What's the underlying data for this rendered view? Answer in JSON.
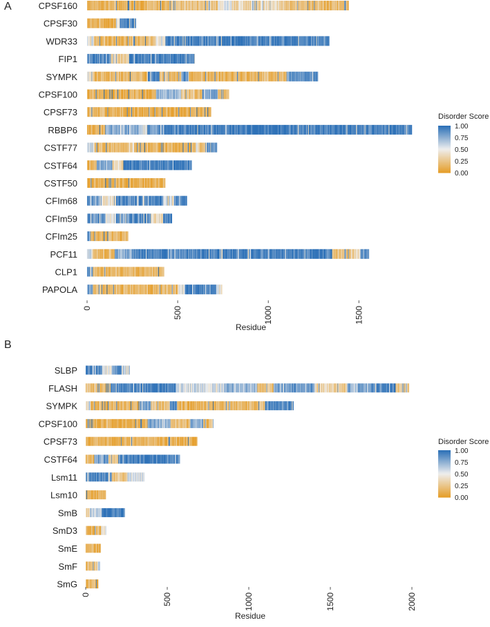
{
  "colors": {
    "low": "#e6a02e",
    "mid": "#eeeeee",
    "high": "#2f72b8",
    "axis": "#cfcfcf",
    "text": "#222222"
  },
  "chart_data": [
    {
      "type": "heatmap",
      "panel_label": "A",
      "xlabel": "Residue",
      "xlim": [
        0,
        1800
      ],
      "x_ticks": [
        0,
        500,
        1000,
        1500
      ],
      "legend": {
        "title": "Disorder Score",
        "ticks": [
          "1.00",
          "0.75",
          "0.50",
          "0.25",
          "0.00"
        ],
        "position": "right"
      },
      "proteins": [
        {
          "name": "CPSF160",
          "length": 1443,
          "segments": [
            [
              0,
              0.15
            ],
            [
              450,
              0.25
            ],
            [
              720,
              0.55
            ],
            [
              800,
              0.35
            ],
            [
              1100,
              0.2
            ],
            [
              1300,
              0.15
            ]
          ]
        },
        {
          "name": "CPSF30",
          "length": 269,
          "segments": [
            [
              0,
              0.1
            ],
            [
              160,
              0.5
            ],
            [
              180,
              0.95
            ]
          ]
        },
        {
          "name": "WDR33",
          "length": 1336,
          "segments": [
            [
              0,
              0.45
            ],
            [
              40,
              0.15
            ],
            [
              380,
              0.5
            ],
            [
              430,
              0.95
            ]
          ]
        },
        {
          "name": "FIP1",
          "length": 594,
          "segments": [
            [
              0,
              0.9
            ],
            [
              130,
              0.3
            ],
            [
              230,
              0.95
            ]
          ]
        },
        {
          "name": "SYMPK",
          "length": 1274,
          "segments": [
            [
              0,
              0.45
            ],
            [
              30,
              0.15
            ],
            [
              330,
              0.9
            ],
            [
              400,
              0.2
            ],
            [
              520,
              0.85
            ],
            [
              560,
              0.15
            ],
            [
              1100,
              0.9
            ]
          ]
        },
        {
          "name": "CPSF100",
          "length": 782,
          "segments": [
            [
              0,
              0.1
            ],
            [
              380,
              0.75
            ],
            [
              520,
              0.2
            ],
            [
              640,
              0.8
            ],
            [
              720,
              0.2
            ]
          ]
        },
        {
          "name": "CPSF73",
          "length": 684,
          "segments": [
            [
              0,
              0.1
            ]
          ]
        },
        {
          "name": "RBBP6",
          "length": 1792,
          "segments": [
            [
              0,
              0.15
            ],
            [
              100,
              0.75
            ],
            [
              300,
              0.5
            ],
            [
              330,
              0.9
            ],
            [
              500,
              0.97
            ]
          ]
        },
        {
          "name": "CSTF77",
          "length": 717,
          "segments": [
            [
              0,
              0.6
            ],
            [
              40,
              0.15
            ],
            [
              230,
              0.35
            ],
            [
              260,
              0.15
            ],
            [
              600,
              0.45
            ],
            [
              620,
              0.2
            ],
            [
              660,
              0.9
            ]
          ]
        },
        {
          "name": "CSTF64",
          "length": 577,
          "segments": [
            [
              0,
              0.15
            ],
            [
              50,
              0.8
            ],
            [
              140,
              0.3
            ],
            [
              200,
              0.95
            ]
          ]
        },
        {
          "name": "CSTF50",
          "length": 431,
          "segments": [
            [
              0,
              0.1
            ]
          ]
        },
        {
          "name": "CFIm68",
          "length": 551,
          "segments": [
            [
              0,
              0.85
            ],
            [
              80,
              0.4
            ],
            [
              160,
              0.9
            ],
            [
              420,
              0.4
            ],
            [
              480,
              0.95
            ]
          ]
        },
        {
          "name": "CFIm59",
          "length": 468,
          "segments": [
            [
              0,
              0.85
            ],
            [
              100,
              0.5
            ],
            [
              160,
              0.9
            ],
            [
              350,
              0.4
            ],
            [
              420,
              0.95
            ]
          ]
        },
        {
          "name": "CFIm25",
          "length": 227,
          "segments": [
            [
              0,
              0.8
            ],
            [
              20,
              0.15
            ]
          ]
        },
        {
          "name": "PCF11",
          "length": 1555,
          "segments": [
            [
              0,
              0.6
            ],
            [
              30,
              0.15
            ],
            [
              150,
              0.75
            ],
            [
              260,
              0.95
            ],
            [
              1350,
              0.2
            ],
            [
              1450,
              0.35
            ],
            [
              1500,
              0.85
            ]
          ]
        },
        {
          "name": "CLP1",
          "length": 425,
          "segments": [
            [
              0,
              0.85
            ],
            [
              30,
              0.15
            ]
          ]
        },
        {
          "name": "PAPOLA",
          "length": 745,
          "segments": [
            [
              0,
              0.85
            ],
            [
              30,
              0.15
            ],
            [
              500,
              0.5
            ],
            [
              540,
              0.95
            ],
            [
              710,
              0.45
            ]
          ]
        }
      ]
    },
    {
      "type": "heatmap",
      "panel_label": "B",
      "xlabel": "Residue",
      "xlim": [
        0,
        2000
      ],
      "x_ticks": [
        0,
        500,
        1000,
        1500,
        2000
      ],
      "legend": {
        "title": "Disorder Score",
        "ticks": [
          "1.00",
          "0.75",
          "0.50",
          "0.25",
          "0.00"
        ],
        "position": "right"
      },
      "proteins": [
        {
          "name": "SLBP",
          "length": 270,
          "segments": [
            [
              0,
              0.9
            ],
            [
              100,
              0.5
            ],
            [
              160,
              0.85
            ],
            [
              220,
              0.5
            ]
          ]
        },
        {
          "name": "FLASH",
          "length": 1982,
          "segments": [
            [
              0,
              0.2
            ],
            [
              150,
              0.95
            ],
            [
              550,
              0.55
            ],
            [
              850,
              0.75
            ],
            [
              1050,
              0.2
            ],
            [
              1150,
              0.8
            ],
            [
              1400,
              0.3
            ],
            [
              1600,
              0.75
            ],
            [
              1750,
              0.9
            ],
            [
              1900,
              0.25
            ]
          ]
        },
        {
          "name": "SYMPK",
          "length": 1274,
          "segments": [
            [
              0,
              0.45
            ],
            [
              30,
              0.15
            ],
            [
              330,
              0.9
            ],
            [
              400,
              0.2
            ],
            [
              520,
              0.85
            ],
            [
              560,
              0.15
            ],
            [
              1100,
              0.9
            ]
          ]
        },
        {
          "name": "CPSF100",
          "length": 782,
          "segments": [
            [
              0,
              0.1
            ],
            [
              380,
              0.75
            ],
            [
              520,
              0.2
            ],
            [
              640,
              0.8
            ],
            [
              720,
              0.2
            ]
          ]
        },
        {
          "name": "CPSF73",
          "length": 684,
          "segments": [
            [
              0,
              0.1
            ]
          ]
        },
        {
          "name": "CSTF64",
          "length": 577,
          "segments": [
            [
              0,
              0.15
            ],
            [
              50,
              0.8
            ],
            [
              140,
              0.3
            ],
            [
              200,
              0.95
            ]
          ]
        },
        {
          "name": "Lsm11",
          "length": 360,
          "segments": [
            [
              0,
              0.9
            ],
            [
              160,
              0.25
            ],
            [
              250,
              0.5
            ],
            [
              300,
              0.55
            ]
          ]
        },
        {
          "name": "Lsm10",
          "length": 123,
          "segments": [
            [
              0,
              0.1
            ]
          ]
        },
        {
          "name": "SmB",
          "length": 240,
          "segments": [
            [
              0,
              0.3
            ],
            [
              30,
              0.6
            ],
            [
              90,
              0.95
            ]
          ]
        },
        {
          "name": "SmD3",
          "length": 126,
          "segments": [
            [
              0,
              0.15
            ],
            [
              90,
              0.45
            ]
          ]
        },
        {
          "name": "SmE",
          "length": 92,
          "segments": [
            [
              0,
              0.12
            ]
          ]
        },
        {
          "name": "SmF",
          "length": 86,
          "segments": [
            [
              0,
              0.2
            ],
            [
              70,
              0.45
            ]
          ]
        },
        {
          "name": "SmG",
          "length": 76,
          "segments": [
            [
              0,
              0.15
            ]
          ]
        }
      ]
    }
  ]
}
